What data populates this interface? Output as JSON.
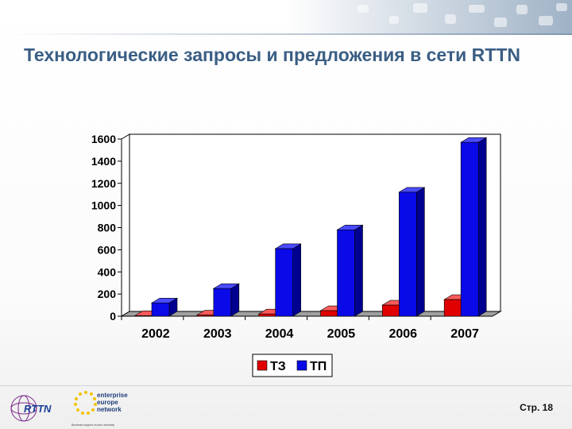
{
  "slide": {
    "title": "Технологические запросы и предложения в сети RTTN",
    "page_number": "Стр. 18"
  },
  "logos": {
    "rttn": "RTTN",
    "een_line1": "enterprise",
    "een_line2": "europe",
    "een_line3": "network",
    "een_tagline": "Business support on your doorstep"
  },
  "colors": {
    "tz": "#e00000",
    "tp": "#0a0ae8",
    "title": "#3a5e84"
  },
  "chart_data": {
    "type": "bar",
    "categories": [
      "2002",
      "2003",
      "2004",
      "2005",
      "2006",
      "2007"
    ],
    "series": [
      {
        "name": "ТЗ",
        "values": [
          5,
          10,
          20,
          50,
          100,
          150
        ]
      },
      {
        "name": "ТП",
        "values": [
          120,
          250,
          610,
          780,
          1120,
          1570
        ]
      }
    ],
    "ylim": [
      0,
      1600
    ],
    "yticks": [
      0,
      200,
      400,
      600,
      800,
      1000,
      1200,
      1400,
      1600
    ],
    "grid": false,
    "legend": "bottom",
    "three_d": true
  }
}
